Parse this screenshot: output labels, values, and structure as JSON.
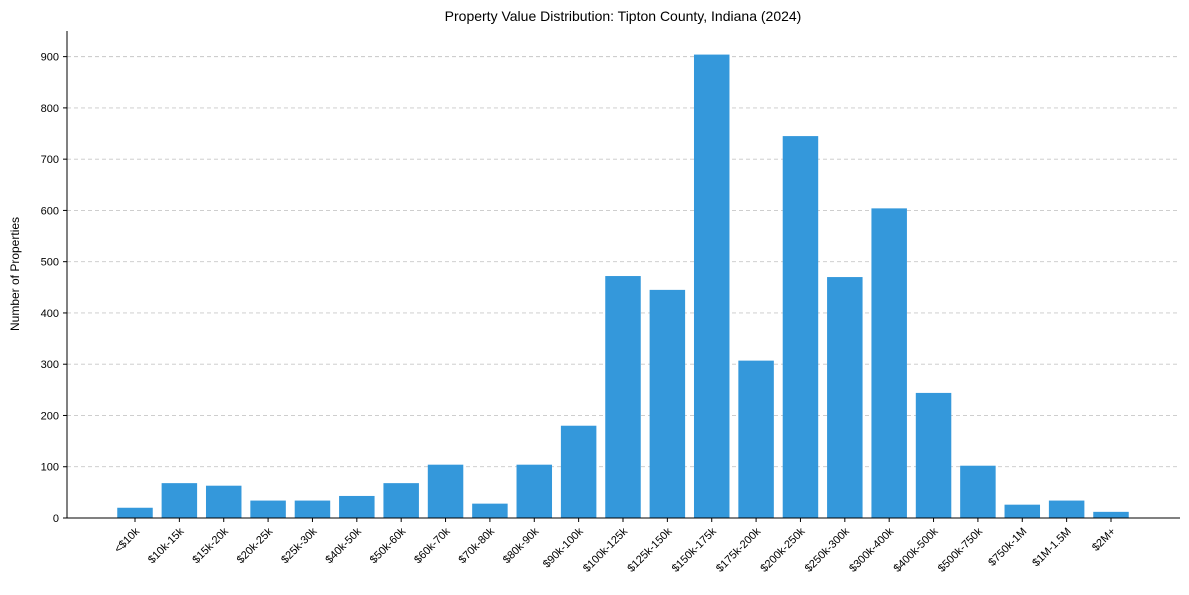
{
  "chart_data": {
    "type": "bar",
    "title": "Property Value Distribution: Tipton County, Indiana (2024)",
    "xlabel": "",
    "ylabel": "Number of Properties",
    "categories": [
      "<$10k",
      "$10k-15k",
      "$15k-20k",
      "$20k-25k",
      "$25k-30k",
      "$40k-50k",
      "$50k-60k",
      "$60k-70k",
      "$70k-80k",
      "$80k-90k",
      "$90k-100k",
      "$100k-125k",
      "$125k-150k",
      "$150k-175k",
      "$175k-200k",
      "$200k-250k",
      "$250k-300k",
      "$300k-400k",
      "$400k-500k",
      "$500k-750k",
      "$750k-1M",
      "$1M-1.5M",
      "$2M+"
    ],
    "values": [
      20,
      68,
      63,
      34,
      34,
      43,
      68,
      104,
      28,
      104,
      180,
      472,
      445,
      904,
      307,
      745,
      470,
      604,
      244,
      102,
      26,
      34,
      12
    ],
    "ylim": [
      0,
      950
    ],
    "yticks": [
      0,
      100,
      200,
      300,
      400,
      500,
      600,
      700,
      800,
      900
    ],
    "grid": "y-dashed",
    "bar_color": "#3498db",
    "grid_color": "#c8c8c8"
  }
}
